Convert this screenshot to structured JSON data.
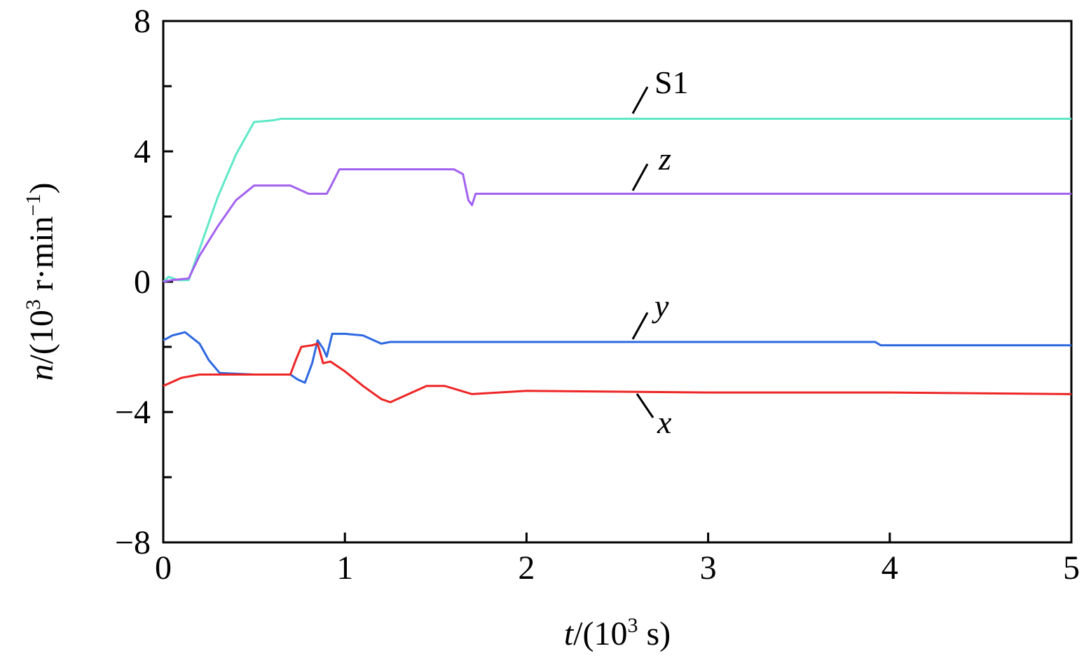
{
  "chart_data": {
    "type": "line",
    "title": "",
    "xlabel": {
      "var": "t",
      "rest": "/(10",
      "sup": "3",
      "unit": " s)"
    },
    "ylabel": {
      "var": "n",
      "rest": "/(10",
      "sup": "3",
      "unit": " r·min",
      "sup2": "−1",
      "close": ")"
    },
    "xlim": [
      0,
      5
    ],
    "ylim": [
      -8,
      8
    ],
    "x_ticks": [
      0,
      1,
      2,
      3,
      4,
      5
    ],
    "x_tick_labels": [
      "0",
      "1",
      "2",
      "3",
      "4",
      "5"
    ],
    "y_ticks": [
      -8,
      -4,
      0,
      4,
      8
    ],
    "y_tick_labels": [
      "−8",
      "−4",
      "0",
      "4",
      "8"
    ],
    "y_minor_ticks": [
      -6,
      -2,
      2,
      6
    ],
    "grid": false,
    "series": [
      {
        "name": "S1",
        "color": "#5fe8c8",
        "points": [
          [
            0,
            0
          ],
          [
            0.03,
            0.15
          ],
          [
            0.08,
            0.05
          ],
          [
            0.14,
            0.05
          ],
          [
            0.2,
            1.0
          ],
          [
            0.3,
            2.6
          ],
          [
            0.4,
            3.9
          ],
          [
            0.5,
            4.9
          ],
          [
            0.6,
            4.95
          ],
          [
            0.65,
            5.0
          ],
          [
            1.0,
            5.0
          ],
          [
            2.0,
            5.0
          ],
          [
            3.0,
            5.0
          ],
          [
            4.0,
            5.0
          ],
          [
            5.0,
            5.0
          ]
        ]
      },
      {
        "name": "z",
        "color": "#a261f0",
        "points": [
          [
            0,
            0
          ],
          [
            0.05,
            0.05
          ],
          [
            0.14,
            0.1
          ],
          [
            0.2,
            0.8
          ],
          [
            0.3,
            1.7
          ],
          [
            0.4,
            2.5
          ],
          [
            0.5,
            2.95
          ],
          [
            0.7,
            2.95
          ],
          [
            0.8,
            2.7
          ],
          [
            0.9,
            2.7
          ],
          [
            0.92,
            2.9
          ],
          [
            0.97,
            3.45
          ],
          [
            1.2,
            3.45
          ],
          [
            1.4,
            3.45
          ],
          [
            1.6,
            3.45
          ],
          [
            1.65,
            3.3
          ],
          [
            1.68,
            2.5
          ],
          [
            1.7,
            2.35
          ],
          [
            1.72,
            2.7
          ],
          [
            1.8,
            2.7
          ],
          [
            2.5,
            2.7
          ],
          [
            5.0,
            2.7
          ]
        ]
      },
      {
        "name": "y",
        "color": "#2d68e0",
        "points": [
          [
            0,
            -1.8
          ],
          [
            0.05,
            -1.65
          ],
          [
            0.12,
            -1.55
          ],
          [
            0.2,
            -1.9
          ],
          [
            0.25,
            -2.4
          ],
          [
            0.31,
            -2.8
          ],
          [
            0.5,
            -2.85
          ],
          [
            0.7,
            -2.85
          ],
          [
            0.74,
            -3.0
          ],
          [
            0.78,
            -3.1
          ],
          [
            0.82,
            -2.5
          ],
          [
            0.85,
            -1.8
          ],
          [
            0.88,
            -2.05
          ],
          [
            0.9,
            -2.3
          ],
          [
            0.93,
            -1.6
          ],
          [
            1.0,
            -1.6
          ],
          [
            1.1,
            -1.65
          ],
          [
            1.2,
            -1.9
          ],
          [
            1.25,
            -1.85
          ],
          [
            2.0,
            -1.85
          ],
          [
            3.0,
            -1.85
          ],
          [
            3.92,
            -1.85
          ],
          [
            3.95,
            -1.95
          ],
          [
            5.0,
            -1.95
          ]
        ]
      },
      {
        "name": "x",
        "color": "#ee2525",
        "points": [
          [
            0,
            -3.2
          ],
          [
            0.1,
            -2.95
          ],
          [
            0.2,
            -2.85
          ],
          [
            0.3,
            -2.85
          ],
          [
            0.5,
            -2.85
          ],
          [
            0.7,
            -2.85
          ],
          [
            0.73,
            -2.4
          ],
          [
            0.76,
            -2.0
          ],
          [
            0.82,
            -1.95
          ],
          [
            0.85,
            -1.9
          ],
          [
            0.88,
            -2.5
          ],
          [
            0.92,
            -2.45
          ],
          [
            1.0,
            -2.75
          ],
          [
            1.1,
            -3.2
          ],
          [
            1.2,
            -3.6
          ],
          [
            1.25,
            -3.7
          ],
          [
            1.35,
            -3.45
          ],
          [
            1.45,
            -3.2
          ],
          [
            1.55,
            -3.2
          ],
          [
            1.7,
            -3.45
          ],
          [
            2.0,
            -3.35
          ],
          [
            3.0,
            -3.4
          ],
          [
            4.0,
            -3.4
          ],
          [
            5.0,
            -3.45
          ]
        ]
      }
    ],
    "annotations": [
      {
        "text": "S1",
        "italic": false
      },
      {
        "text": "z",
        "italic": true
      },
      {
        "text": "y",
        "italic": true
      },
      {
        "text": "x",
        "italic": true
      }
    ]
  }
}
